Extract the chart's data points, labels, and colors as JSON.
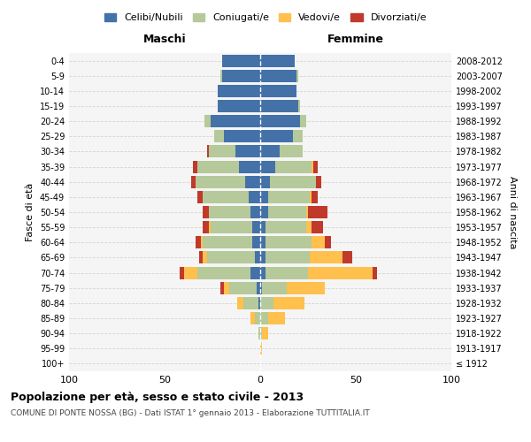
{
  "age_groups": [
    "100+",
    "95-99",
    "90-94",
    "85-89",
    "80-84",
    "75-79",
    "70-74",
    "65-69",
    "60-64",
    "55-59",
    "50-54",
    "45-49",
    "40-44",
    "35-39",
    "30-34",
    "25-29",
    "20-24",
    "15-19",
    "10-14",
    "5-9",
    "0-4"
  ],
  "birth_years": [
    "≤ 1912",
    "1913-1917",
    "1918-1922",
    "1923-1927",
    "1928-1932",
    "1933-1937",
    "1938-1942",
    "1943-1947",
    "1948-1952",
    "1953-1957",
    "1958-1962",
    "1963-1967",
    "1968-1972",
    "1973-1977",
    "1978-1982",
    "1983-1987",
    "1988-1992",
    "1993-1997",
    "1998-2002",
    "2003-2007",
    "2008-2012"
  ],
  "maschi": {
    "celibi": [
      0,
      0,
      0,
      0,
      1,
      2,
      5,
      3,
      4,
      4,
      5,
      6,
      8,
      11,
      13,
      19,
      26,
      22,
      22,
      20,
      20
    ],
    "coniugati": [
      0,
      0,
      1,
      3,
      8,
      14,
      28,
      25,
      26,
      22,
      22,
      24,
      26,
      22,
      14,
      5,
      3,
      0,
      0,
      1,
      0
    ],
    "vedovi": [
      0,
      0,
      0,
      2,
      3,
      3,
      7,
      2,
      1,
      1,
      0,
      0,
      0,
      0,
      0,
      0,
      0,
      0,
      0,
      0,
      0
    ],
    "divorziati": [
      0,
      0,
      0,
      0,
      0,
      2,
      2,
      2,
      3,
      3,
      3,
      3,
      2,
      2,
      1,
      0,
      0,
      0,
      0,
      0,
      0
    ]
  },
  "femmine": {
    "nubili": [
      0,
      0,
      0,
      0,
      0,
      1,
      3,
      3,
      3,
      3,
      4,
      4,
      5,
      8,
      10,
      17,
      21,
      20,
      19,
      19,
      18
    ],
    "coniugate": [
      0,
      0,
      1,
      4,
      7,
      13,
      22,
      23,
      24,
      21,
      20,
      22,
      24,
      19,
      12,
      5,
      3,
      1,
      0,
      1,
      0
    ],
    "vedove": [
      0,
      1,
      3,
      9,
      16,
      20,
      34,
      17,
      7,
      3,
      1,
      1,
      0,
      1,
      0,
      0,
      0,
      0,
      0,
      0,
      0
    ],
    "divorziate": [
      0,
      0,
      0,
      0,
      0,
      0,
      2,
      5,
      3,
      6,
      10,
      3,
      3,
      2,
      0,
      0,
      0,
      0,
      0,
      0,
      0
    ]
  },
  "colors": {
    "celibi": "#4472a8",
    "coniugati": "#b5c99a",
    "vedovi": "#ffc04d",
    "divorziati": "#c0392b"
  },
  "xlim": 100,
  "title": "Popolazione per età, sesso e stato civile - 2013",
  "subtitle": "COMUNE DI PONTE NOSSA (BG) - Dati ISTAT 1° gennaio 2013 - Elaborazione TUTTITALIA.IT",
  "ylabel": "Fasce di età",
  "ylabel_right": "Anni di nascita",
  "legend_labels": [
    "Celibi/Nubili",
    "Coniugati/e",
    "Vedovi/e",
    "Divorziati/e"
  ],
  "maschi_label": "Maschi",
  "femmine_label": "Femmine"
}
